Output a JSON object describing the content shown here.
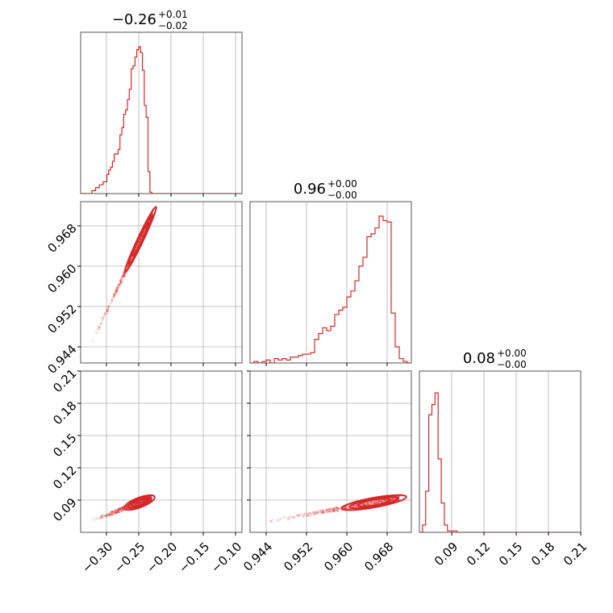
{
  "chart_data": {
    "type": "corner",
    "accent_color": "#d62728",
    "grid": true,
    "parameters": [
      {
        "title_main": "−0.26",
        "title_plus": "+0.01",
        "title_minus": "−0.02",
        "range": [
          -0.34,
          -0.09
        ],
        "ticks": [
          -0.3,
          -0.25,
          -0.2,
          -0.15,
          -0.1
        ],
        "tick_labels": [
          "−0.30",
          "−0.25",
          "−0.20",
          "−0.15",
          "−0.10"
        ],
        "hist": {
          "edges": [
            -0.34,
            -0.3371,
            -0.3342,
            -0.3313,
            -0.3284,
            -0.3255,
            -0.3226,
            -0.3197,
            -0.3168,
            -0.3139,
            -0.311,
            -0.3081,
            -0.3052,
            -0.3023,
            -0.2994,
            -0.2965,
            -0.2936,
            -0.2907,
            -0.2878,
            -0.2849,
            -0.282,
            -0.2791,
            -0.2762,
            -0.2733,
            -0.2704,
            -0.2675,
            -0.2646,
            -0.2617,
            -0.2588,
            -0.2559,
            -0.253,
            -0.2501,
            -0.2472,
            -0.2443,
            -0.2414,
            -0.2385,
            -0.2356,
            -0.2327,
            -0.2298,
            -0.2269,
            -0.224,
            -0.2211
          ],
          "counts": [
            0,
            0,
            0,
            0,
            0,
            0,
            0.02,
            0.02,
            0.04,
            0.04,
            0.06,
            0.06,
            0.08,
            0.08,
            0.13,
            0.16,
            0.18,
            0.22,
            0.27,
            0.27,
            0.3,
            0.4,
            0.45,
            0.54,
            0.57,
            0.64,
            0.71,
            0.85,
            0.87,
            0.93,
            0.98,
            1.0,
            0.96,
            0.84,
            0.6,
            0.52,
            0.15,
            0.01,
            0.0,
            0.0,
            0.0
          ]
        }
      },
      {
        "title_main": "0.96",
        "title_plus": "+0.00",
        "title_minus": "−0.00",
        "range": [
          0.9408,
          0.9728
        ],
        "ticks": [
          0.944,
          0.952,
          0.96,
          0.968
        ],
        "tick_labels": [
          "0.944",
          "0.952",
          "0.960",
          "0.968"
        ],
        "hist": {
          "edges": [
            0.9408,
            0.9416,
            0.9424,
            0.9432,
            0.944,
            0.9448,
            0.9456,
            0.9464,
            0.9472,
            0.948,
            0.9488,
            0.9496,
            0.9504,
            0.9512,
            0.952,
            0.9528,
            0.9536,
            0.9544,
            0.9552,
            0.956,
            0.9568,
            0.9576,
            0.9584,
            0.9592,
            0.96,
            0.9608,
            0.9616,
            0.9624,
            0.9632,
            0.964,
            0.9648,
            0.9656,
            0.9664,
            0.9672,
            0.968,
            0.9688,
            0.9696,
            0.9704,
            0.9712,
            0.972,
            0.9728
          ],
          "counts": [
            0.0,
            0.01,
            0.0,
            0.01,
            0.02,
            0.0,
            0.03,
            0.02,
            0.03,
            0.02,
            0.04,
            0.04,
            0.05,
            0.06,
            0.06,
            0.07,
            0.16,
            0.2,
            0.24,
            0.22,
            0.25,
            0.33,
            0.36,
            0.38,
            0.45,
            0.49,
            0.56,
            0.66,
            0.72,
            0.86,
            0.88,
            0.92,
            1.0,
            0.97,
            0.96,
            0.34,
            0.11,
            0.03,
            0.01,
            0.0
          ]
        }
      },
      {
        "title_main": "0.08",
        "title_plus": "+0.00",
        "title_minus": "−0.00",
        "range": [
          0.06,
          0.21
        ],
        "ticks": [
          0.09,
          0.12,
          0.15,
          0.18,
          0.21
        ],
        "tick_labels": [
          "0.09",
          "0.12",
          "0.15",
          "0.18",
          "0.21"
        ],
        "hist": {
          "edges": [
            0.06,
            0.0629,
            0.0658,
            0.0687,
            0.0716,
            0.0745,
            0.0774,
            0.0803,
            0.0832,
            0.0861,
            0.089,
            0.0919,
            0.0948,
            0.0977,
            0.1006,
            0.1035,
            0.1064,
            0.1093,
            0.1122,
            0.1151,
            0.118,
            0.1209,
            0.1238,
            0.1267,
            0.1296,
            0.1325,
            0.1354,
            0.1383,
            0.1412,
            0.1441,
            0.147,
            0.1499,
            0.1528,
            0.1557,
            0.1586,
            0.1615,
            0.1644,
            0.1673,
            0.1702,
            0.1731,
            0.176,
            0.1789,
            0.1818,
            0.1847,
            0.1876,
            0.1905,
            0.1934,
            0.1963,
            0.1992,
            0.2021,
            0.205,
            0.21
          ],
          "counts": [
            0,
            0.05,
            0.28,
            0.8,
            0.87,
            0.95,
            0.5,
            0.2,
            0.05,
            0.01,
            0.01,
            0.01,
            0,
            0,
            0,
            0,
            0,
            0,
            0,
            0,
            0,
            0,
            0,
            0,
            0,
            0,
            0,
            0,
            0,
            0,
            0,
            0,
            0,
            0,
            0,
            0,
            0,
            0,
            0,
            0,
            0,
            0,
            0,
            0,
            0,
            0,
            0,
            0,
            0,
            0,
            0
          ]
        }
      }
    ]
  }
}
